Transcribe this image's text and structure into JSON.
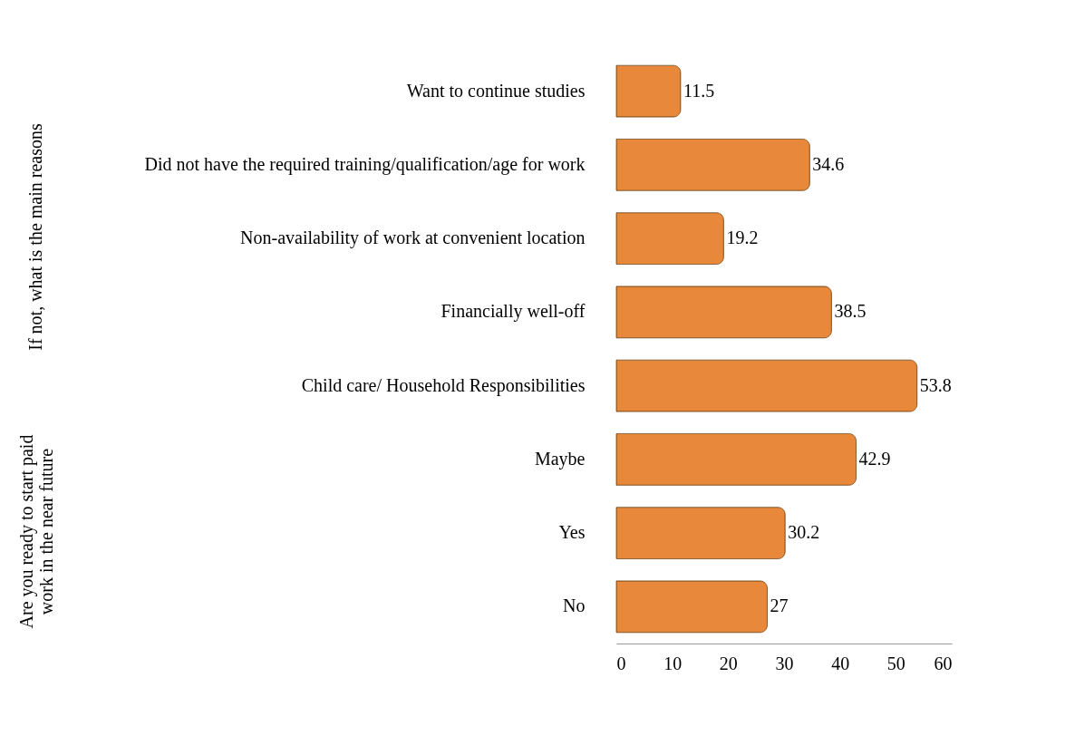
{
  "chart_data": {
    "type": "bar",
    "orientation": "horizontal",
    "categories": [
      "Want to continue studies",
      "Did not have the required training/qualification/age for work",
      "Non-availability of work at convenient location",
      "Financially well-off",
      "Child care/ Household Responsibilities",
      "Maybe",
      "Yes",
      "No"
    ],
    "values": [
      11.5,
      34.6,
      19.2,
      38.5,
      53.8,
      42.9,
      30.2,
      27
    ],
    "color": "#e8883a",
    "xlim": [
      0,
      60
    ],
    "xticks": [
      0,
      10,
      20,
      30,
      40,
      50,
      60
    ],
    "data_labels": true,
    "grid": false,
    "annotations": [
      "If not, what is the main reasons",
      "Are you ready to start paid work in the near future"
    ]
  }
}
